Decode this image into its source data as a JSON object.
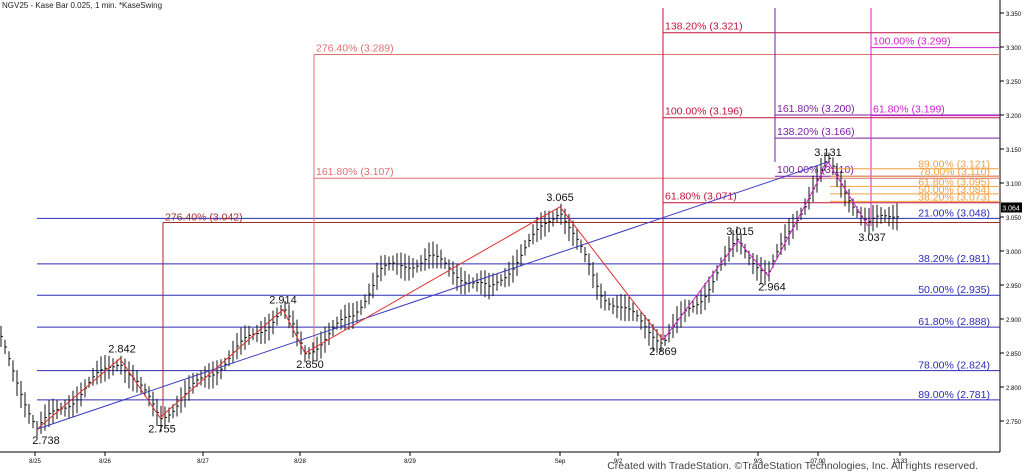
{
  "header": {
    "title": "NGV25 - Kase Bar 0.025, 1 min. *KaseSwing"
  },
  "footer": {
    "credit": "Created with TradeStation. ©TradeStation Technologies, Inc. All rights reserved."
  },
  "chart_data": {
    "type": "bar",
    "title": "NGV25 - Kase Bar 0.025, 1 min. *KaseSwing",
    "ylim": [
      2.72,
      3.36
    ],
    "y_ticks": [
      "3.350",
      "3.300",
      "3.250",
      "3.200",
      "3.150",
      "3.100",
      "3.050",
      "3.000",
      "2.950",
      "2.900",
      "2.850",
      "2.800",
      "2.750"
    ],
    "x_ticks": [
      "8/25",
      "8/26",
      "8/27",
      "8/28",
      "8/29",
      "Sep",
      "9/2",
      "9/3",
      "07:00",
      "13:33"
    ],
    "last_price": "3.064",
    "swing_labels": [
      {
        "text": "2.738",
        "value": 2.738
      },
      {
        "text": "2.842",
        "value": 2.842
      },
      {
        "text": "2.755",
        "value": 2.755
      },
      {
        "text": "2.914",
        "value": 2.914
      },
      {
        "text": "2.850",
        "value": 2.85
      },
      {
        "text": "3.065",
        "value": 3.065
      },
      {
        "text": "2.869",
        "value": 2.869
      },
      {
        "text": "3.015",
        "value": 3.015
      },
      {
        "text": "2.964",
        "value": 2.964
      },
      {
        "text": "3.131",
        "value": 3.131
      },
      {
        "text": "3.037",
        "value": 3.037
      }
    ],
    "retracement_levels": [
      {
        "label": "21.00% (3.048)",
        "value": 3.048,
        "color": "#2b2bb8"
      },
      {
        "label": "38.20% (2.981)",
        "value": 2.981,
        "color": "#2b2bb8"
      },
      {
        "label": "50.00% (2.935)",
        "value": 2.935,
        "color": "#2b2bb8"
      },
      {
        "label": "61.80% (2.888)",
        "value": 2.888,
        "color": "#2b2bb8"
      },
      {
        "label": "78.00% (2.824)",
        "value": 2.824,
        "color": "#2b2bb8"
      },
      {
        "label": "89.00% (2.781)",
        "value": 2.781,
        "color": "#2b2bb8"
      }
    ],
    "extension_levels": [
      {
        "label": "276.40% (3.042)",
        "value": 3.042,
        "color": "#a52a2a"
      },
      {
        "label": "161.80% (3.107)",
        "value": 3.107,
        "color": "#e07070"
      },
      {
        "label": "276.40% (3.289)",
        "value": 3.289,
        "color": "#e07070"
      },
      {
        "label": "138.20% (3.321)",
        "value": 3.321,
        "color": "#c0143c"
      },
      {
        "label": "100.00% (3.196)",
        "value": 3.196,
        "color": "#c0143c"
      },
      {
        "label": "61.80% (3.071)",
        "value": 3.071,
        "color": "#c0143c"
      },
      {
        "label": "161.80% (3.200)",
        "value": 3.2,
        "color": "#7b1fa2"
      },
      {
        "label": "138.20% (3.166)",
        "value": 3.166,
        "color": "#7b1fa2"
      },
      {
        "label": "100.00% (3.110)",
        "value": 3.11,
        "color": "#7b1fa2"
      },
      {
        "label": "100.00% (3.299)",
        "value": 3.299,
        "color": "#d020d0"
      },
      {
        "label": "61.80% (3.199)",
        "value": 3.199,
        "color": "#d020d0"
      }
    ],
    "orange_levels": [
      {
        "label": "89.00% (3.121)",
        "value": 3.121
      },
      {
        "label": "78.00% (3.110)",
        "value": 3.11
      },
      {
        "label": "61.80% (3.095)",
        "value": 3.095
      },
      {
        "label": "50.00% (3.084)",
        "value": 3.084
      },
      {
        "label": "38.20% (3.073)",
        "value": 3.073
      }
    ],
    "grid": false,
    "colors": {
      "bars": "#111111",
      "swing_red": "#e03030",
      "swing_purple": "#cc22cc",
      "trend_blue": "#3a3ac0",
      "orange": "#f0a040"
    }
  }
}
